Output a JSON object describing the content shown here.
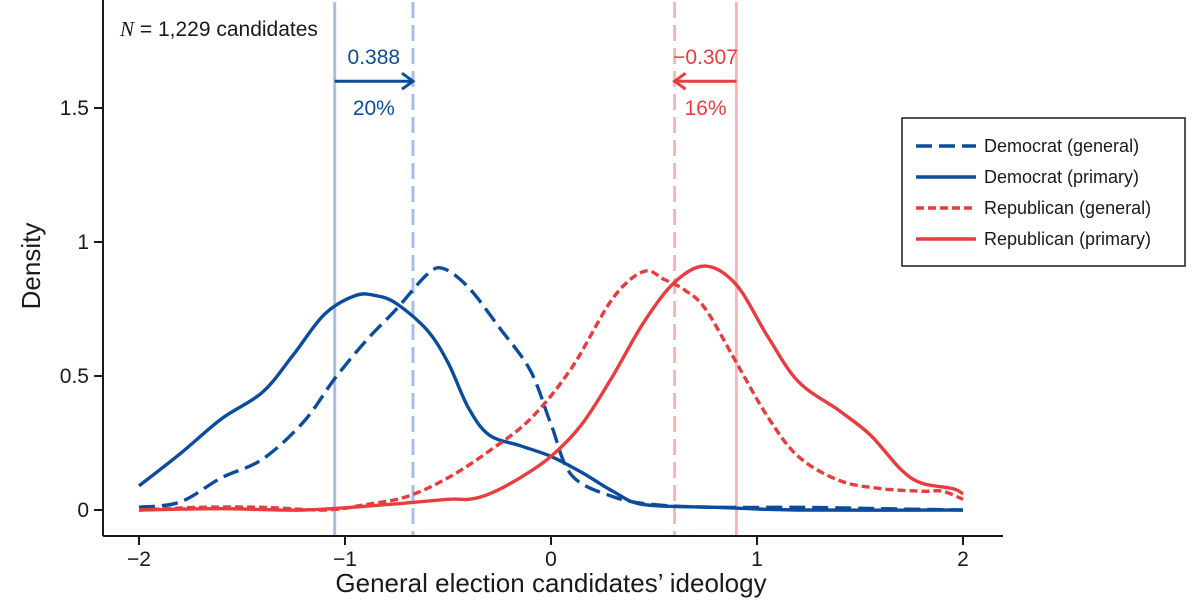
{
  "chart_data": {
    "type": "line",
    "title": "",
    "xlabel": "General election candidates’ ideology",
    "ylabel": "Density",
    "xlim": [
      -2.2,
      2.2
    ],
    "ylim": [
      -0.1,
      1.9
    ],
    "xticks": [
      -2,
      -1,
      0,
      1,
      2
    ],
    "xtick_labels": [
      "−2",
      "−1",
      "0",
      "1",
      "2"
    ],
    "yticks": [
      0,
      0.5,
      1,
      1.5
    ],
    "ytick_labels": [
      "0",
      "0.5",
      "1",
      "1.5"
    ],
    "note": {
      "var": "N",
      "text": " = 1,229 candidates"
    },
    "series": [
      {
        "name": "Democrat (general)",
        "color": "#0b4c9c",
        "dash": "dashed",
        "points": [
          [
            -2.0,
            0.01
          ],
          [
            -1.8,
            0.03
          ],
          [
            -1.6,
            0.12
          ],
          [
            -1.4,
            0.19
          ],
          [
            -1.2,
            0.33
          ],
          [
            -1.05,
            0.49
          ],
          [
            -0.9,
            0.63
          ],
          [
            -0.75,
            0.75
          ],
          [
            -0.6,
            0.88
          ],
          [
            -0.52,
            0.9
          ],
          [
            -0.4,
            0.83
          ],
          [
            -0.25,
            0.68
          ],
          [
            -0.1,
            0.52
          ],
          [
            0.0,
            0.32
          ],
          [
            0.1,
            0.13
          ],
          [
            0.3,
            0.05
          ],
          [
            0.5,
            0.02
          ],
          [
            0.8,
            0.01
          ],
          [
            1.2,
            0.01
          ],
          [
            1.6,
            0.005
          ],
          [
            2.0,
            0.0
          ]
        ]
      },
      {
        "name": "Democrat (primary)",
        "color": "#0b4c9c",
        "dash": "solid",
        "points": [
          [
            -2.0,
            0.09
          ],
          [
            -1.8,
            0.21
          ],
          [
            -1.6,
            0.34
          ],
          [
            -1.4,
            0.44
          ],
          [
            -1.25,
            0.58
          ],
          [
            -1.1,
            0.73
          ],
          [
            -0.95,
            0.8
          ],
          [
            -0.85,
            0.8
          ],
          [
            -0.75,
            0.77
          ],
          [
            -0.6,
            0.67
          ],
          [
            -0.5,
            0.55
          ],
          [
            -0.4,
            0.38
          ],
          [
            -0.3,
            0.28
          ],
          [
            -0.15,
            0.24
          ],
          [
            0.0,
            0.2
          ],
          [
            0.15,
            0.14
          ],
          [
            0.3,
            0.07
          ],
          [
            0.45,
            0.02
          ],
          [
            0.8,
            0.01
          ],
          [
            1.2,
            0.0
          ],
          [
            2.0,
            0.0
          ]
        ]
      },
      {
        "name": "Republican (general)",
        "color": "#e83c3e",
        "dash": "dotted",
        "points": [
          [
            -2.0,
            0.0
          ],
          [
            -1.7,
            0.01
          ],
          [
            -1.4,
            0.01
          ],
          [
            -1.1,
            0.0
          ],
          [
            -0.9,
            0.02
          ],
          [
            -0.7,
            0.05
          ],
          [
            -0.5,
            0.12
          ],
          [
            -0.3,
            0.22
          ],
          [
            -0.1,
            0.34
          ],
          [
            0.1,
            0.53
          ],
          [
            0.3,
            0.79
          ],
          [
            0.45,
            0.89
          ],
          [
            0.55,
            0.86
          ],
          [
            0.65,
            0.82
          ],
          [
            0.75,
            0.75
          ],
          [
            0.9,
            0.55
          ],
          [
            1.05,
            0.35
          ],
          [
            1.2,
            0.2
          ],
          [
            1.4,
            0.11
          ],
          [
            1.6,
            0.08
          ],
          [
            1.8,
            0.07
          ],
          [
            1.9,
            0.07
          ],
          [
            2.0,
            0.04
          ]
        ]
      },
      {
        "name": "Republican (primary)",
        "color": "#e83c3e",
        "dash": "solid",
        "points": [
          [
            -2.0,
            0.0
          ],
          [
            -1.6,
            0.005
          ],
          [
            -1.2,
            0.0
          ],
          [
            -0.8,
            0.02
          ],
          [
            -0.5,
            0.04
          ],
          [
            -0.4,
            0.04
          ],
          [
            -0.3,
            0.06
          ],
          [
            -0.15,
            0.12
          ],
          [
            0.0,
            0.2
          ],
          [
            0.15,
            0.32
          ],
          [
            0.3,
            0.5
          ],
          [
            0.45,
            0.7
          ],
          [
            0.6,
            0.85
          ],
          [
            0.75,
            0.91
          ],
          [
            0.9,
            0.84
          ],
          [
            1.05,
            0.65
          ],
          [
            1.2,
            0.48
          ],
          [
            1.4,
            0.37
          ],
          [
            1.55,
            0.28
          ],
          [
            1.7,
            0.15
          ],
          [
            1.8,
            0.1
          ],
          [
            1.95,
            0.08
          ],
          [
            2.0,
            0.06
          ]
        ]
      }
    ],
    "vlines": [
      {
        "name": "dem-primary-mean",
        "x": -1.05,
        "color": "#a7bfe6",
        "dash": "solid"
      },
      {
        "name": "dem-general-mean",
        "x": -0.67,
        "color": "#a7bfe6",
        "dash": "dashed"
      },
      {
        "name": "rep-general-mean",
        "x": 0.6,
        "color": "#f5b7b7",
        "dash": "dashed"
      },
      {
        "name": "rep-primary-mean",
        "x": 0.9,
        "color": "#f5b7b7",
        "dash": "solid"
      }
    ],
    "annotations": [
      {
        "name": "dem-shift",
        "from_x": -1.05,
        "to_x": -0.67,
        "y": 1.6,
        "value": "0.388",
        "pct": "20%",
        "color": "#0b4c9c"
      },
      {
        "name": "rep-shift",
        "from_x": 0.9,
        "to_x": 0.6,
        "y": 1.6,
        "value": "−0.307",
        "pct": "16%",
        "color": "#e83c3e"
      }
    ],
    "legend": {
      "position": "right",
      "entries": [
        {
          "label": "Democrat (general)",
          "color": "#0b4c9c",
          "dash": "dashed"
        },
        {
          "label": "Democrat (primary)",
          "color": "#0b4c9c",
          "dash": "solid"
        },
        {
          "label": "Republican (general)",
          "color": "#e83c3e",
          "dash": "dotted"
        },
        {
          "label": "Republican (primary)",
          "color": "#e83c3e",
          "dash": "solid"
        }
      ]
    }
  }
}
